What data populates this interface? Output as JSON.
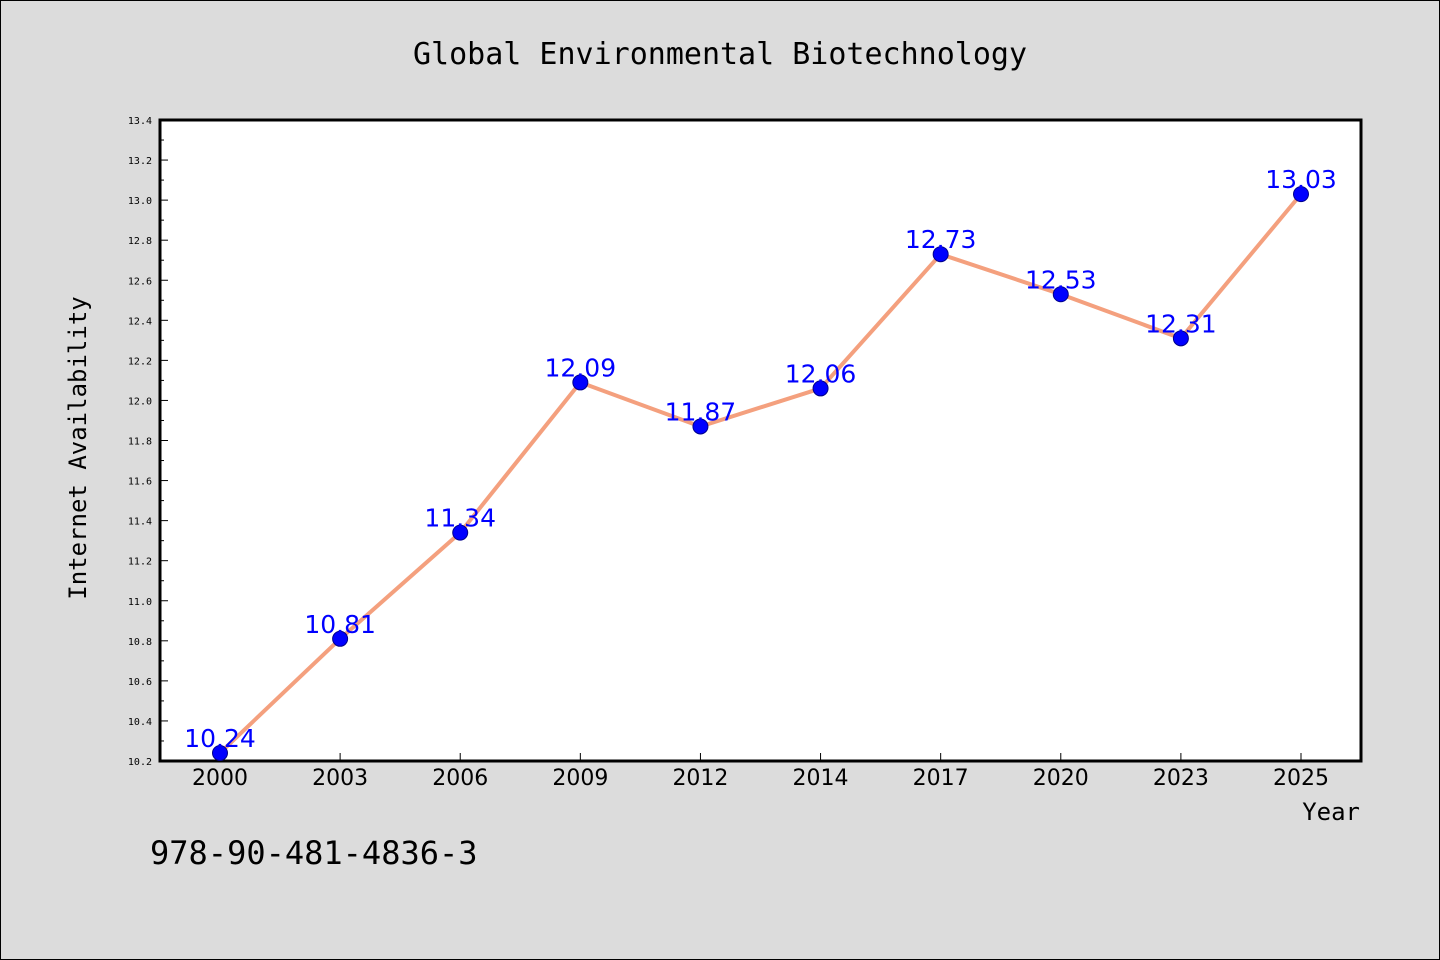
{
  "chart_data": {
    "type": "line",
    "title": "Global Environmental Biotechnology",
    "xlabel": "Year",
    "ylabel": "Internet Availability",
    "categories": [
      "2000",
      "2003",
      "2006",
      "2009",
      "2012",
      "2014",
      "2017",
      "2020",
      "2023",
      "2025"
    ],
    "series": [
      {
        "values": [
          10.24,
          10.81,
          11.34,
          12.09,
          11.87,
          12.06,
          12.73,
          12.53,
          12.31,
          13.03
        ],
        "value_labels": [
          "10.24",
          "10.81",
          "11.34",
          "12.09",
          "11.87",
          "12.06",
          "12.73",
          "12.53",
          "12.31",
          "13.03"
        ],
        "line_color": "#f4a07e",
        "marker_color": "#0000ff",
        "label_color": "#0000ff"
      }
    ],
    "ylim": [
      10.2,
      13.4
    ],
    "y_ticks": [
      "10.2",
      "10.4",
      "10.6",
      "10.8",
      "11.0",
      "11.2",
      "11.4",
      "11.6",
      "11.8",
      "12.0",
      "12.2",
      "12.4",
      "12.6",
      "12.8",
      "13.0",
      "13.2",
      "13.4"
    ],
    "grid": false,
    "background_color": "#dcdcdc",
    "plot_background_color": "#ffffff"
  },
  "footnote": "978-90-481-4836-3"
}
